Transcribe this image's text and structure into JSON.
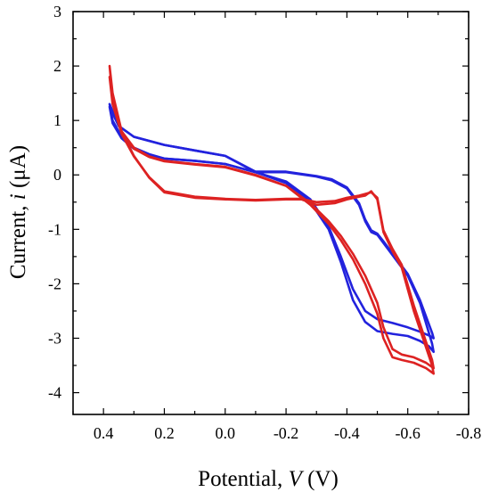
{
  "chart_data": {
    "type": "line",
    "xlabel": {
      "main": "Potential, ",
      "var": "V",
      "unit": " (V)"
    },
    "ylabel": {
      "main": "Current, ",
      "var": "i",
      "unit": " (μA)"
    },
    "xlim": [
      0.5,
      -0.8
    ],
    "ylim": [
      3,
      -4.4
    ],
    "x_ticks": [
      0.4,
      0.2,
      0.0,
      -0.2,
      -0.4,
      -0.6,
      -0.8
    ],
    "x_tick_labels": [
      "0.4",
      "0.2",
      "0.0",
      "-0.2",
      "-0.4",
      "-0.6",
      "-0.8"
    ],
    "y_ticks": [
      3,
      2,
      1,
      0,
      -1,
      -2,
      -3,
      -4
    ],
    "y_tick_labels": [
      "3",
      "2",
      "1",
      "0",
      "-1",
      "-2",
      "-3",
      "-4"
    ],
    "x_minor_step": 0.1,
    "y_minor_step": 0.5,
    "grid": false,
    "series": [
      {
        "color": "#2222dd",
        "x": [
          0.38,
          0.37,
          0.34,
          0.3,
          0.25,
          0.2,
          0.1,
          0.0,
          -0.1,
          -0.2,
          -0.28,
          -0.34,
          -0.38,
          -0.42,
          -0.46,
          -0.5,
          -0.55,
          -0.6,
          -0.64,
          -0.67,
          -0.685,
          -0.68,
          -0.64,
          -0.6,
          -0.56,
          -0.52,
          -0.5,
          -0.48,
          -0.46,
          -0.44,
          -0.4,
          -0.35,
          -0.3,
          -0.2,
          -0.1,
          0.0,
          0.1,
          0.2,
          0.3,
          0.35,
          0.38
        ],
        "y": [
          1.3,
          1.0,
          0.7,
          0.5,
          0.38,
          0.3,
          0.26,
          0.2,
          0.05,
          -0.15,
          -0.5,
          -1.0,
          -1.6,
          -2.3,
          -2.7,
          -2.87,
          -2.92,
          -2.96,
          -3.05,
          -3.15,
          -3.25,
          -3.1,
          -2.35,
          -1.85,
          -1.55,
          -1.25,
          -1.1,
          -1.05,
          -0.85,
          -0.55,
          -0.25,
          -0.1,
          -0.03,
          0.05,
          0.05,
          0.35,
          0.45,
          0.55,
          0.7,
          0.9,
          1.3
        ]
      },
      {
        "color": "#2222dd",
        "x": [
          0.38,
          0.37,
          0.34,
          0.3,
          0.25,
          0.2,
          0.1,
          0.0,
          -0.1,
          -0.2,
          -0.28,
          -0.34,
          -0.38,
          -0.42,
          -0.46,
          -0.5,
          -0.55,
          -0.6,
          -0.64,
          -0.67,
          -0.685,
          -0.68,
          -0.64,
          -0.6,
          -0.56,
          -0.52,
          -0.5,
          -0.48,
          -0.46,
          -0.44,
          -0.4,
          -0.35,
          -0.3,
          -0.2,
          -0.1,
          0.0,
          0.1,
          0.2,
          0.3,
          0.35,
          0.38
        ],
        "y": [
          1.25,
          0.95,
          0.67,
          0.48,
          0.36,
          0.3,
          0.26,
          0.2,
          0.05,
          -0.12,
          -0.45,
          -0.95,
          -1.5,
          -2.1,
          -2.5,
          -2.65,
          -2.72,
          -2.8,
          -2.88,
          -2.95,
          -3.0,
          -2.9,
          -2.3,
          -1.82,
          -1.52,
          -1.22,
          -1.08,
          -1.02,
          -0.82,
          -0.52,
          -0.23,
          -0.08,
          -0.02,
          0.06,
          0.06,
          0.35,
          0.45,
          0.55,
          0.7,
          0.9,
          1.25
        ]
      },
      {
        "color": "#dd2222",
        "x": [
          0.38,
          0.37,
          0.34,
          0.3,
          0.25,
          0.2,
          0.1,
          0.0,
          -0.1,
          -0.2,
          -0.28,
          -0.34,
          -0.38,
          -0.42,
          -0.46,
          -0.5,
          -0.52,
          -0.55,
          -0.58,
          -0.62,
          -0.66,
          -0.685,
          -0.68,
          -0.62,
          -0.58,
          -0.55,
          -0.52,
          -0.5,
          -0.48,
          -0.46,
          -0.44,
          -0.4,
          -0.36,
          -0.3,
          -0.25,
          -0.2,
          -0.1,
          0.0,
          0.1,
          0.2,
          0.25,
          0.3,
          0.34,
          0.37,
          0.38
        ],
        "y": [
          2.0,
          1.5,
          0.8,
          0.5,
          0.34,
          0.26,
          0.2,
          0.15,
          0.0,
          -0.2,
          -0.55,
          -0.9,
          -1.2,
          -1.55,
          -2.0,
          -2.55,
          -3.0,
          -3.35,
          -3.4,
          -3.45,
          -3.55,
          -3.65,
          -3.5,
          -2.5,
          -1.7,
          -1.4,
          -1.05,
          -0.45,
          -0.3,
          -0.38,
          -0.4,
          -0.45,
          -0.52,
          -0.55,
          -0.45,
          -0.45,
          -0.47,
          -0.45,
          -0.42,
          -0.32,
          -0.05,
          0.35,
          0.8,
          1.4,
          2.0
        ]
      },
      {
        "color": "#dd2222",
        "x": [
          0.38,
          0.37,
          0.34,
          0.3,
          0.25,
          0.2,
          0.1,
          0.0,
          -0.1,
          -0.2,
          -0.28,
          -0.34,
          -0.38,
          -0.42,
          -0.46,
          -0.5,
          -0.52,
          -0.55,
          -0.58,
          -0.62,
          -0.66,
          -0.685,
          -0.68,
          -0.62,
          -0.58,
          -0.55,
          -0.52,
          -0.5,
          -0.48,
          -0.46,
          -0.44,
          -0.4,
          -0.36,
          -0.3,
          -0.25,
          -0.2,
          -0.1,
          0.0,
          0.1,
          0.2,
          0.25,
          0.3,
          0.34,
          0.37,
          0.38
        ],
        "y": [
          1.8,
          1.35,
          0.75,
          0.48,
          0.33,
          0.25,
          0.19,
          0.14,
          -0.01,
          -0.2,
          -0.52,
          -0.85,
          -1.12,
          -1.45,
          -1.85,
          -2.35,
          -2.8,
          -3.2,
          -3.3,
          -3.35,
          -3.45,
          -3.55,
          -3.4,
          -2.4,
          -1.65,
          -1.36,
          -1.02,
          -0.42,
          -0.32,
          -0.35,
          -0.38,
          -0.42,
          -0.48,
          -0.5,
          -0.44,
          -0.44,
          -0.46,
          -0.44,
          -0.4,
          -0.3,
          -0.04,
          0.34,
          0.75,
          1.3,
          1.8
        ]
      }
    ]
  }
}
